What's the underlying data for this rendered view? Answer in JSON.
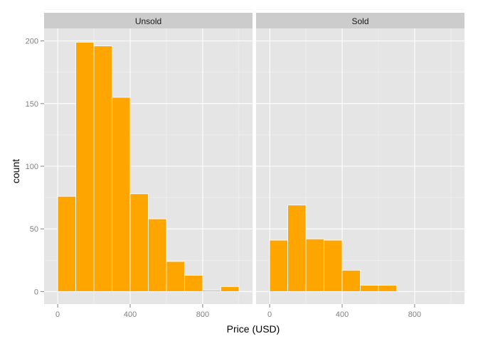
{
  "chart_data": {
    "type": "bar",
    "subtype": "histogram-faceted",
    "xlabel": "Price (USD)",
    "ylabel": "count",
    "xlim": [
      -75,
      1075
    ],
    "ylim": [
      -10,
      210
    ],
    "x_ticks": [
      0,
      400,
      800
    ],
    "y_ticks": [
      0,
      50,
      100,
      150,
      200
    ],
    "grid": true,
    "bar_color": "#FFA500",
    "bin_width": 100,
    "panels": [
      {
        "name": "Unsold",
        "bins": [
          {
            "x0": 0,
            "x1": 100,
            "count": 76
          },
          {
            "x0": 100,
            "x1": 200,
            "count": 199
          },
          {
            "x0": 200,
            "x1": 300,
            "count": 196
          },
          {
            "x0": 300,
            "x1": 400,
            "count": 155
          },
          {
            "x0": 400,
            "x1": 500,
            "count": 78
          },
          {
            "x0": 500,
            "x1": 600,
            "count": 58
          },
          {
            "x0": 600,
            "x1": 700,
            "count": 24
          },
          {
            "x0": 700,
            "x1": 800,
            "count": 13
          },
          {
            "x0": 800,
            "x1": 900,
            "count": 1
          },
          {
            "x0": 900,
            "x1": 1000,
            "count": 4
          }
        ]
      },
      {
        "name": "Sold",
        "bins": [
          {
            "x0": 0,
            "x1": 100,
            "count": 41
          },
          {
            "x0": 100,
            "x1": 200,
            "count": 69
          },
          {
            "x0": 200,
            "x1": 300,
            "count": 42
          },
          {
            "x0": 300,
            "x1": 400,
            "count": 41
          },
          {
            "x0": 400,
            "x1": 500,
            "count": 17
          },
          {
            "x0": 500,
            "x1": 600,
            "count": 5
          },
          {
            "x0": 600,
            "x1": 700,
            "count": 5
          }
        ]
      }
    ]
  }
}
